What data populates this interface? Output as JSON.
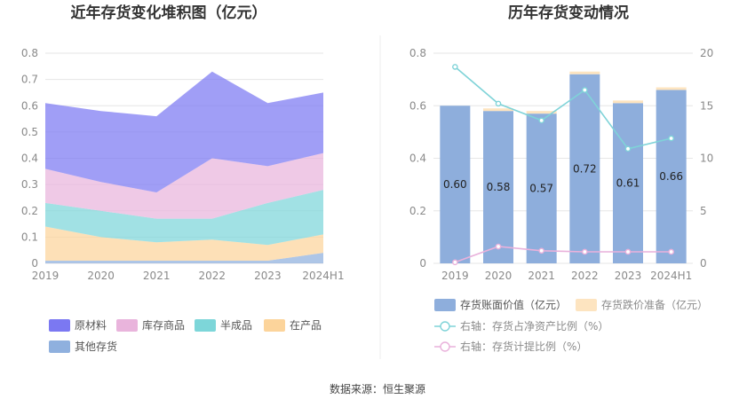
{
  "source_text": "数据来源：恒生聚源",
  "colors": {
    "raw": "#7b78f2",
    "goods": "#e9b4dc",
    "semi": "#7dd6d9",
    "wip": "#fcd49b",
    "other": "#8fb0de",
    "book": "#8eaedc",
    "provision": "#fde4c0",
    "ratio_line": "#7fd3d8",
    "prov_line": "#e9b1db"
  },
  "chart_data": [
    {
      "type": "area",
      "title": "近年存货变化堆积图（亿元）",
      "categories": [
        "2019",
        "2020",
        "2021",
        "2022",
        "2023",
        "2024H1"
      ],
      "ylim": [
        0,
        0.8
      ],
      "yticks": [
        "0",
        "0.1",
        "0.2",
        "0.3",
        "0.4",
        "0.5",
        "0.6",
        "0.7",
        "0.8"
      ],
      "grid": true,
      "legend_position": "bottom",
      "stack_order": [
        "其他存货",
        "在产品",
        "半成品",
        "库存商品",
        "原材料"
      ],
      "series": [
        {
          "name": "原材料",
          "values": [
            0.25,
            0.27,
            0.29,
            0.33,
            0.24,
            0.23
          ]
        },
        {
          "name": "库存商品",
          "values": [
            0.13,
            0.11,
            0.1,
            0.23,
            0.14,
            0.14
          ]
        },
        {
          "name": "半成品",
          "values": [
            0.09,
            0.1,
            0.09,
            0.08,
            0.16,
            0.17
          ]
        },
        {
          "name": "在产品",
          "values": [
            0.13,
            0.09,
            0.07,
            0.08,
            0.06,
            0.07
          ]
        },
        {
          "name": "其他存货",
          "values": [
            0.01,
            0.01,
            0.01,
            0.01,
            0.01,
            0.04
          ]
        }
      ]
    },
    {
      "type": "bar",
      "title": "历年存货变动情况",
      "categories": [
        "2019",
        "2020",
        "2021",
        "2022",
        "2023",
        "2024H1"
      ],
      "ylim": [
        0,
        0.8
      ],
      "yticks": [
        "0",
        "0.2",
        "0.4",
        "0.6",
        "0.8"
      ],
      "y2lim": [
        0,
        20
      ],
      "y2ticks": [
        "0",
        "5",
        "10",
        "15",
        "20"
      ],
      "grid": true,
      "legend_position": "bottom",
      "series": [
        {
          "name": "存货账面价值（亿元）",
          "axis": "left",
          "kind": "bar",
          "values": [
            0.6,
            0.58,
            0.57,
            0.72,
            0.61,
            0.66
          ],
          "labels": [
            "0.60",
            "0.58",
            "0.57",
            "0.72",
            "0.61",
            "0.66"
          ]
        },
        {
          "name": "存货跌价准备（亿元）",
          "axis": "left",
          "kind": "bar-stack",
          "values": [
            0.0,
            0.01,
            0.01,
            0.01,
            0.01,
            0.01
          ]
        },
        {
          "name": "右轴：存货占净资产比例（%）",
          "axis": "right",
          "kind": "line",
          "values": [
            18.7,
            15.2,
            13.6,
            16.5,
            10.9,
            11.9
          ]
        },
        {
          "name": "右轴：存货计提比例（%）",
          "axis": "right",
          "kind": "line",
          "values": [
            0.1,
            1.6,
            1.2,
            1.1,
            1.1,
            1.1
          ]
        }
      ]
    }
  ]
}
